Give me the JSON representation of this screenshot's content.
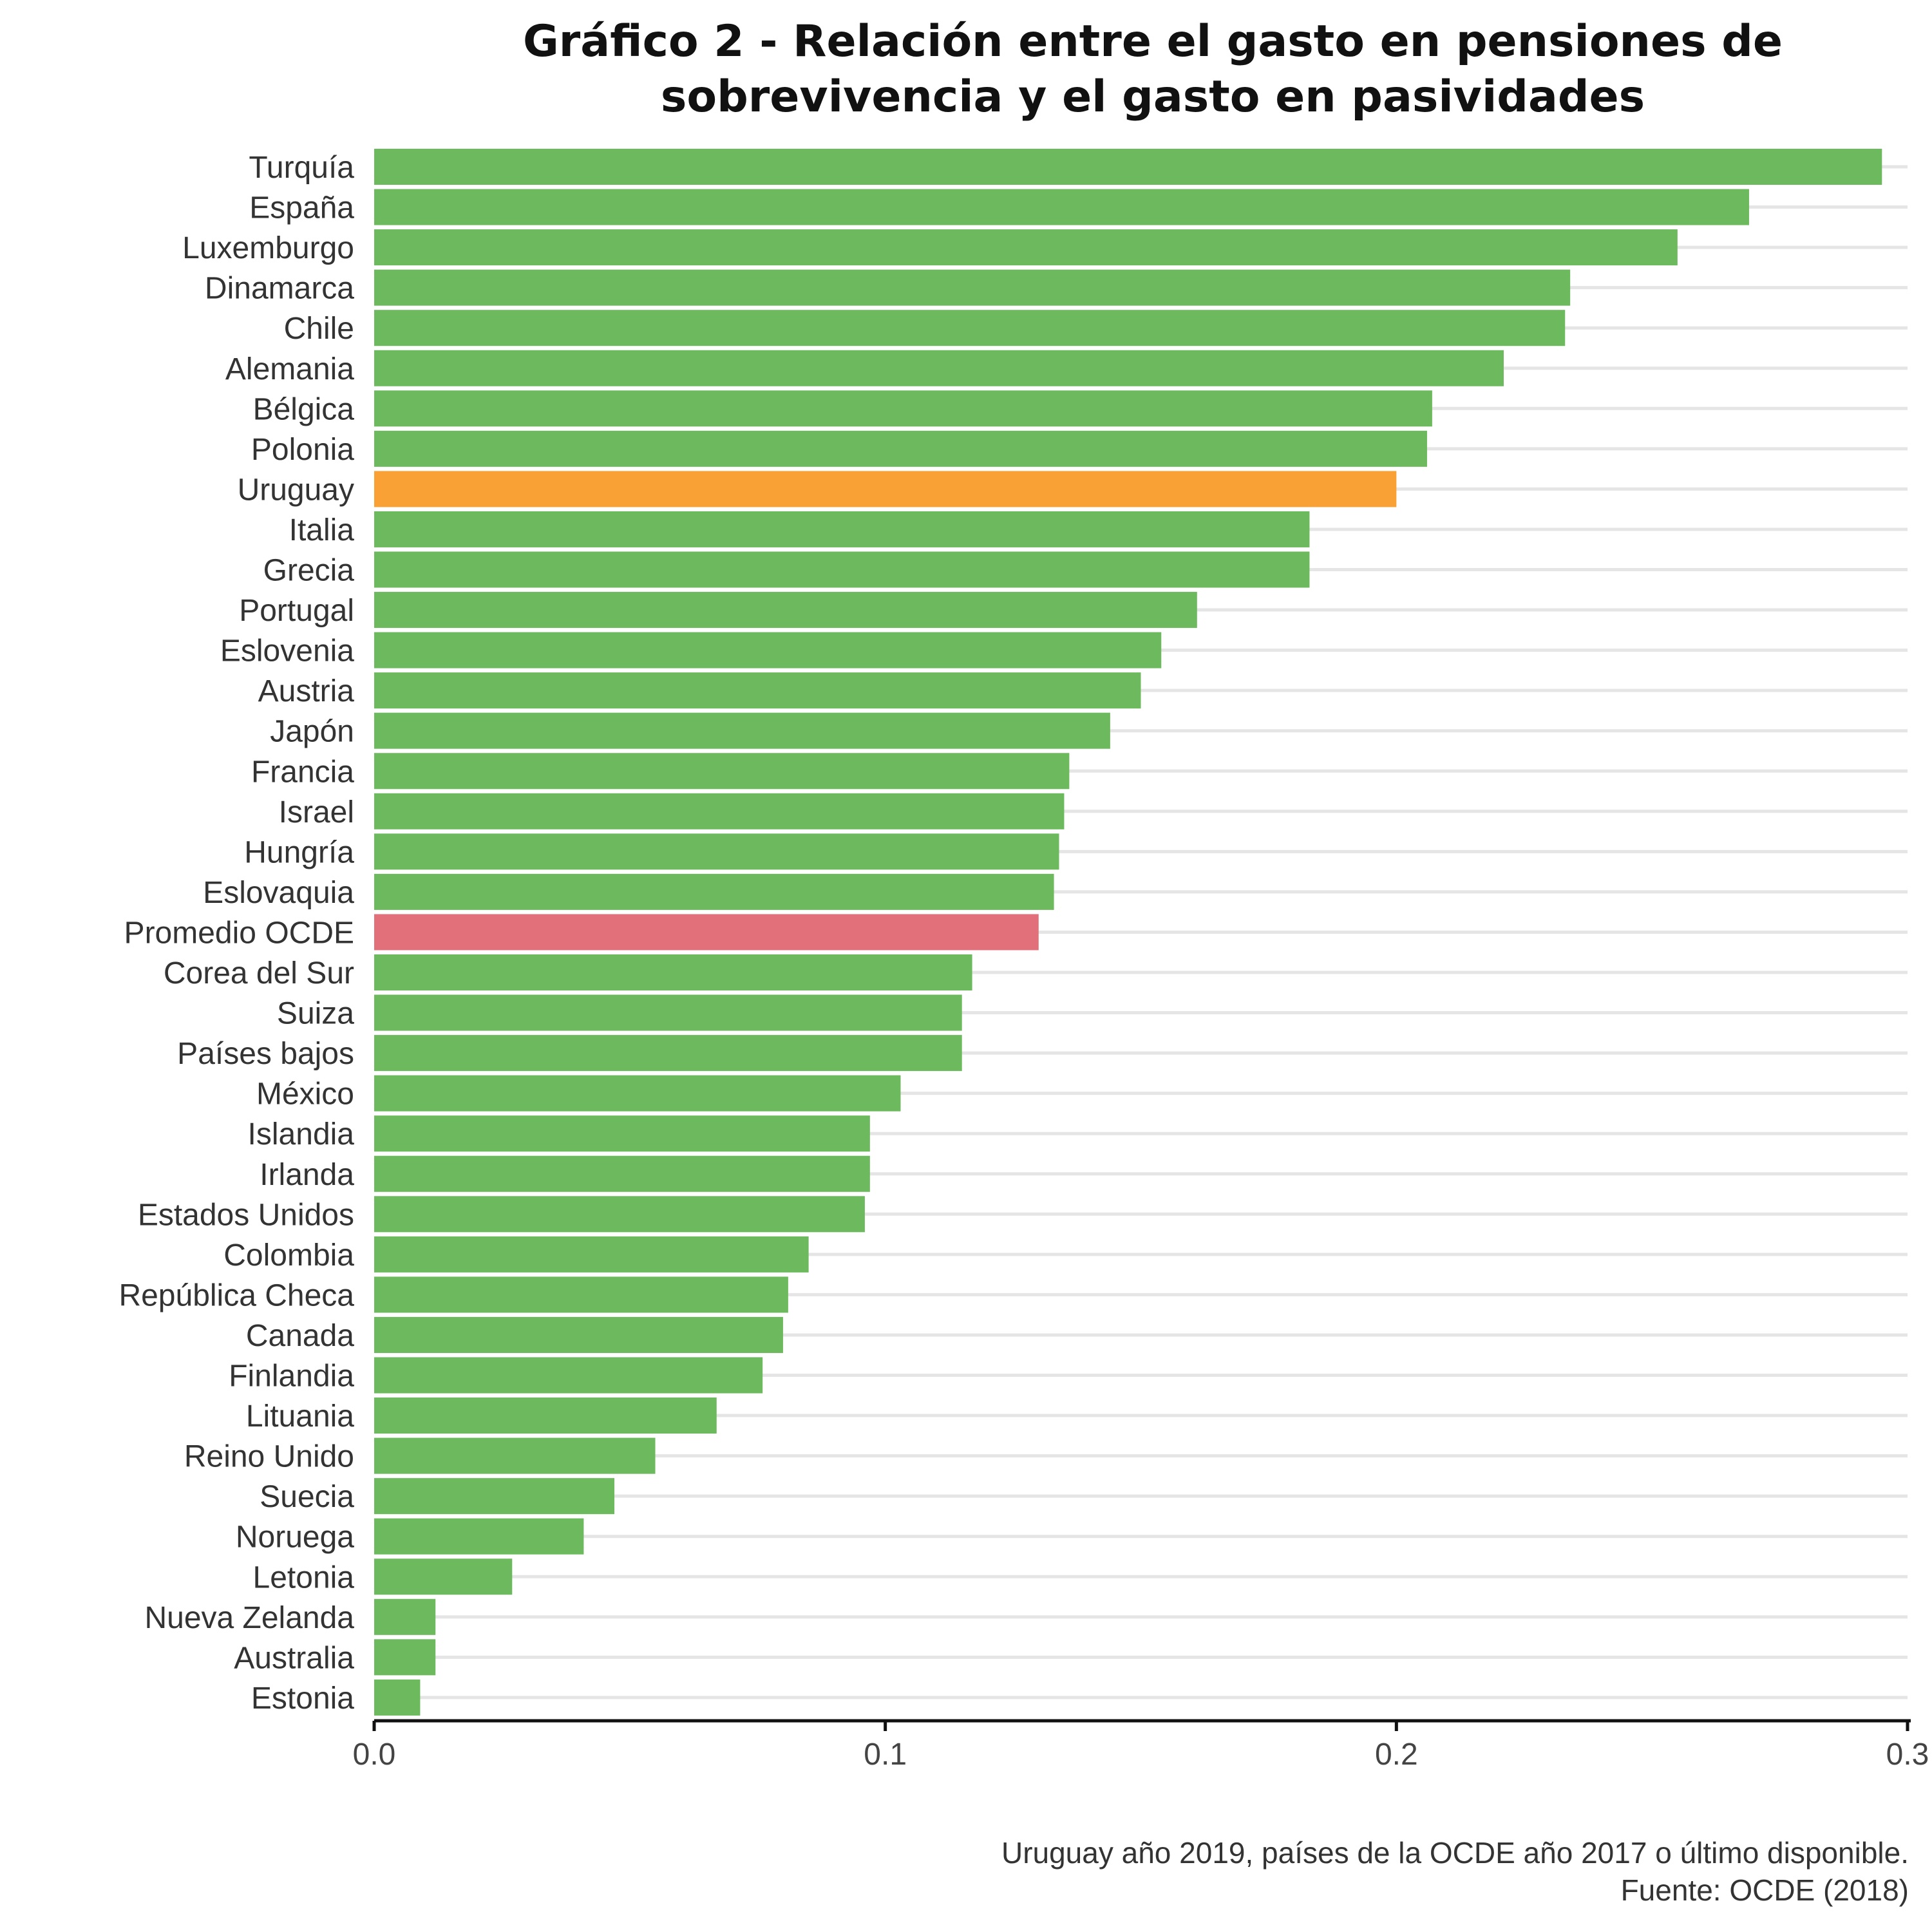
{
  "chart_data": {
    "type": "bar",
    "orientation": "horizontal",
    "title_lines": [
      "Gráfico 2 - Relación entre el gasto en pensiones de",
      "sobrevivencia y el gasto en pasividades"
    ],
    "xlabel": "",
    "ylabel": "",
    "xlim": [
      0,
      0.3
    ],
    "x_ticks": [
      "0.0",
      "0.1",
      "0.2",
      "0.3"
    ],
    "grid": "horizontal",
    "categories": [
      "Turquía",
      "España",
      "Luxemburgo",
      "Dinamarca",
      "Chile",
      "Alemania",
      "Bélgica",
      "Polonia",
      "Uruguay",
      "Italia",
      "Grecia",
      "Portugal",
      "Eslovenia",
      "Austria",
      "Japón",
      "Francia",
      "Israel",
      "Hungría",
      "Eslovaquia",
      "Promedio OCDE",
      "Corea del Sur",
      "Suiza",
      "Países bajos",
      "México",
      "Islandia",
      "Irlanda",
      "Estados Unidos",
      "Colombia",
      "República Checa",
      "Canada",
      "Finlandia",
      "Lituania",
      "Reino Unido",
      "Suecia",
      "Noruega",
      "Letonia",
      "Nueva Zelanda",
      "Australia",
      "Estonia"
    ],
    "values": [
      0.295,
      0.269,
      0.255,
      0.234,
      0.233,
      0.221,
      0.207,
      0.206,
      0.2,
      0.183,
      0.183,
      0.161,
      0.154,
      0.15,
      0.144,
      0.136,
      0.135,
      0.134,
      0.133,
      0.13,
      0.117,
      0.115,
      0.115,
      0.103,
      0.097,
      0.097,
      0.096,
      0.085,
      0.081,
      0.08,
      0.076,
      0.067,
      0.055,
      0.047,
      0.041,
      0.027,
      0.012,
      0.012,
      0.009
    ],
    "colors": {
      "default": "#6dba5e",
      "Uruguay": "#f9a134",
      "Promedio OCDE": "#e2707a",
      "grid": "#e5e5e5",
      "axis": "#111111"
    }
  },
  "caption_lines": [
    "Uruguay año 2019, países de la OCDE año 2017 o último disponible.",
    "Fuente: OCDE (2018)"
  ]
}
